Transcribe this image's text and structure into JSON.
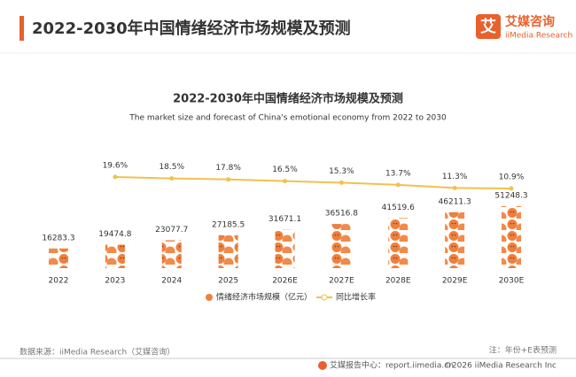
{
  "header": {
    "title": "2022-2030年中国情绪经济市场规模及预测"
  },
  "logo": {
    "icon": "艾",
    "name": "艾媒咨询",
    "sub": "iiMedia Research"
  },
  "chart_data": {
    "type": "pictorial-bar-line",
    "title": "2022-2030年中国情绪经济市场规模及预测",
    "subtitle": "The market size and forecast of China's emotional economy from 2022 to 2030",
    "categories": [
      "2022",
      "2023",
      "2024",
      "2025",
      "2026E",
      "2027E",
      "2028E",
      "2029E",
      "2030E"
    ],
    "series": [
      {
        "name": "情绪经济市场规模（亿元）",
        "color": "#f07f3c",
        "values": [
          16283.3,
          19474.8,
          23077.7,
          27185.5,
          31671.1,
          36516.8,
          41519.6,
          46211.3,
          51248.3
        ]
      },
      {
        "name": "同比增长率",
        "color": "#f2c14e",
        "axis": "y2",
        "values": [
          null,
          19.6,
          18.5,
          17.8,
          16.5,
          15.3,
          13.7,
          11.3,
          10.9
        ],
        "value_labels": [
          null,
          "19.6%",
          "18.5%",
          "17.8%",
          "16.5%",
          "15.3%",
          "13.7%",
          "11.3%",
          "10.9%"
        ]
      }
    ]
  },
  "footer": {
    "source": "数据来源：iiMedia Research（艾媒咨询）",
    "note": "注：年份+E表预测",
    "site": "艾媒报告中心：report.iimedia.cn",
    "copyright": "©2026  iiMedia Research  Inc"
  }
}
